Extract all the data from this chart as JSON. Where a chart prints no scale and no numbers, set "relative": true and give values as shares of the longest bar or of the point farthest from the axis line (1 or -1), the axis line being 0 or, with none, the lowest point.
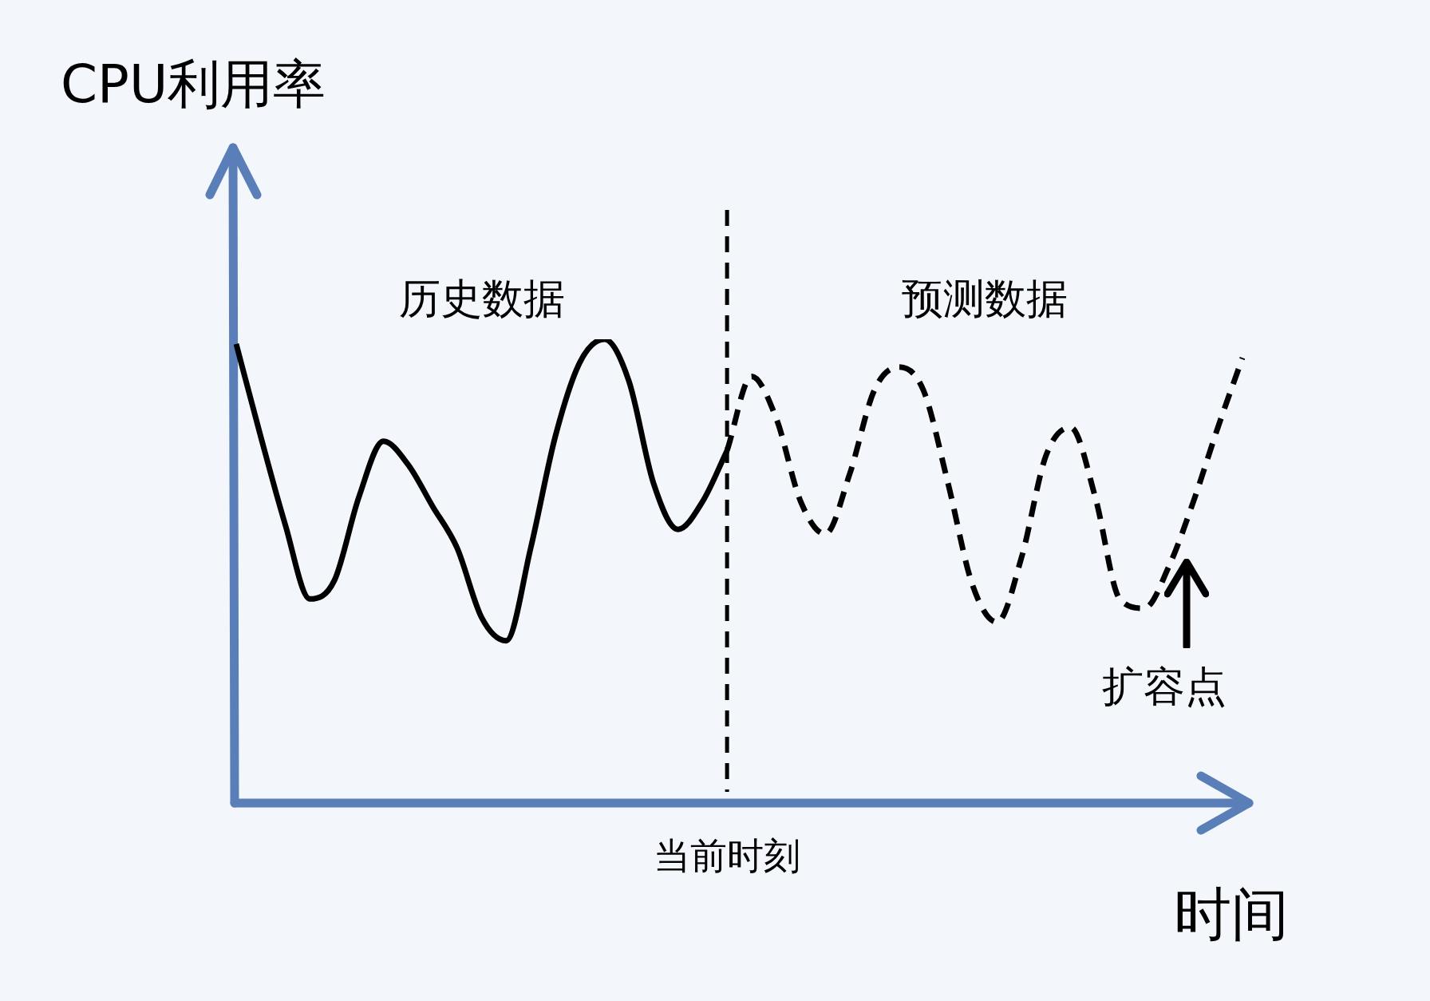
{
  "chart_data": {
    "type": "line",
    "relative": true,
    "ylabel": "CPU利用率",
    "xlabel": "时间",
    "marker": "none",
    "categories": [
      null,
      null,
      null,
      null,
      null,
      null,
      null,
      null,
      null,
      null,
      null,
      null,
      null,
      null,
      null,
      null,
      null,
      null,
      null,
      null,
      null,
      null,
      null,
      null,
      null,
      null,
      null,
      null,
      null,
      null,
      null,
      null,
      null,
      null,
      null,
      null,
      null,
      null,
      null,
      null,
      null,
      null
    ],
    "series": [
      {
        "name": "历史数据",
        "color": "#000000",
        "line_style": "solid",
        "values": [
          0.99,
          0.79,
          0.6,
          0.44,
          0.48,
          0.66,
          0.78,
          0.73,
          0.64,
          0.55,
          0.4,
          0.35,
          0.55,
          0.79,
          0.95,
          1.0,
          0.91,
          0.69,
          0.59,
          0.65,
          0.76,
          null,
          null,
          null,
          null,
          null,
          null,
          null,
          null,
          null,
          null,
          null,
          null,
          null,
          null,
          null,
          null,
          null,
          null,
          null,
          null,
          null
        ]
      },
      {
        "name": "预测数据",
        "color": "#000000",
        "line_style": "dashed",
        "values": [
          null,
          null,
          null,
          null,
          null,
          null,
          null,
          null,
          null,
          null,
          null,
          null,
          null,
          null,
          null,
          null,
          null,
          null,
          null,
          null,
          0.76,
          0.92,
          0.83,
          0.65,
          0.58,
          0.71,
          0.89,
          0.94,
          0.89,
          0.69,
          0.47,
          0.39,
          0.53,
          0.75,
          0.81,
          0.66,
          0.44,
          0.42,
          0.51,
          0.65,
          0.81,
          0.96
        ]
      }
    ],
    "annotations": [
      "当前时刻",
      "扩容点"
    ]
  }
}
